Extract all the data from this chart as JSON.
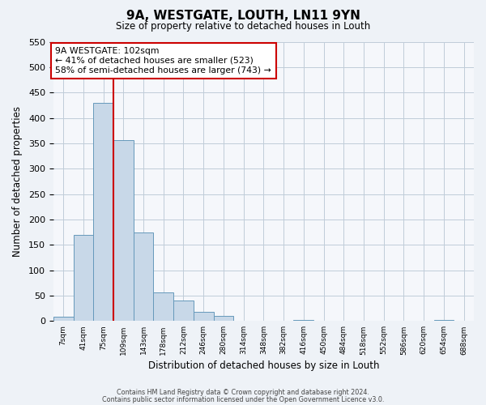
{
  "title": "9A, WESTGATE, LOUTH, LN11 9YN",
  "subtitle": "Size of property relative to detached houses in Louth",
  "xlabel": "Distribution of detached houses by size in Louth",
  "ylabel": "Number of detached properties",
  "bin_labels": [
    "7sqm",
    "41sqm",
    "75sqm",
    "109sqm",
    "143sqm",
    "178sqm",
    "212sqm",
    "246sqm",
    "280sqm",
    "314sqm",
    "348sqm",
    "382sqm",
    "416sqm",
    "450sqm",
    "484sqm",
    "518sqm",
    "552sqm",
    "586sqm",
    "620sqm",
    "654sqm",
    "688sqm"
  ],
  "bar_values": [
    8,
    170,
    430,
    357,
    175,
    56,
    40,
    18,
    10,
    0,
    0,
    0,
    2,
    0,
    0,
    0,
    0,
    0,
    0,
    2,
    0
  ],
  "bar_color": "#c8d8e8",
  "bar_edge_color": "#6699bb",
  "vline_x_index": 3,
  "vline_color": "#cc0000",
  "ylim": [
    0,
    550
  ],
  "yticks": [
    0,
    50,
    100,
    150,
    200,
    250,
    300,
    350,
    400,
    450,
    500,
    550
  ],
  "annotation_title": "9A WESTGATE: 102sqm",
  "annotation_line1": "← 41% of detached houses are smaller (523)",
  "annotation_line2": "58% of semi-detached houses are larger (743) →",
  "annotation_box_color": "#cc0000",
  "footer_line1": "Contains HM Land Registry data © Crown copyright and database right 2024.",
  "footer_line2": "Contains public sector information licensed under the Open Government Licence v3.0.",
  "bg_color": "#eef2f7",
  "plot_bg_color": "#f5f7fb"
}
